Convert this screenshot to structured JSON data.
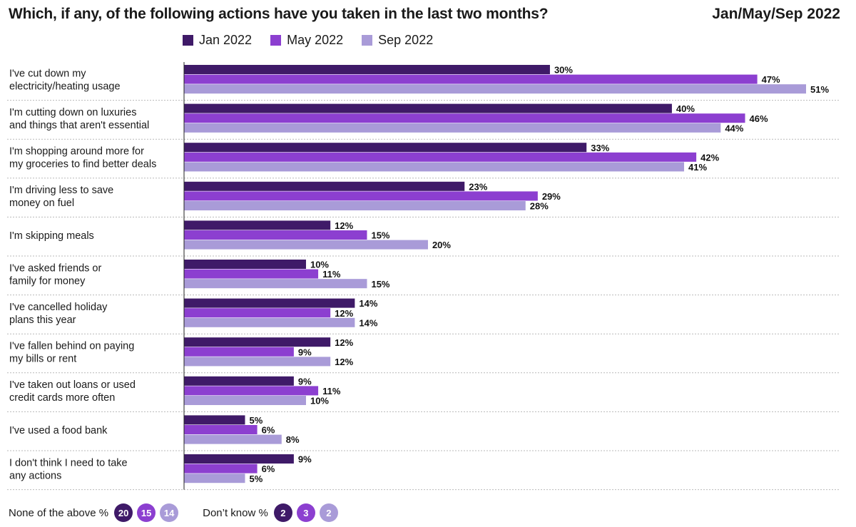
{
  "title": "Which, if any, of the following actions have you taken in the last two months?",
  "period_label": "Jan/May/Sep 2022",
  "colors": {
    "jan": "#3f1a68",
    "may": "#8c3fd0",
    "sep": "#a99bd8"
  },
  "chart_data": {
    "type": "bar",
    "orientation": "horizontal",
    "categories": [
      [
        "I've cut down my",
        "electricity/heating usage"
      ],
      [
        "I'm cutting down on luxuries",
        "and things that aren't essential"
      ],
      [
        "I'm shopping around more for",
        "my groceries to find better deals"
      ],
      [
        "I'm driving less to save",
        "money on fuel"
      ],
      [
        "I'm skipping meals"
      ],
      [
        "I've asked friends or",
        "family for money"
      ],
      [
        "I've cancelled holiday",
        "plans this year"
      ],
      [
        "I've fallen behind on paying",
        "my bills or rent"
      ],
      [
        "I've taken out loans or used",
        "credit cards more often"
      ],
      [
        "I've used a food bank"
      ],
      [
        "I don't think I need to take",
        "any actions"
      ]
    ],
    "series": [
      {
        "name": "Jan 2022",
        "values": [
          30,
          40,
          33,
          23,
          12,
          10,
          14,
          12,
          9,
          5,
          9
        ]
      },
      {
        "name": "May 2022",
        "values": [
          47,
          46,
          42,
          29,
          15,
          11,
          12,
          9,
          11,
          6,
          6
        ]
      },
      {
        "name": "Sep 2022",
        "values": [
          51,
          44,
          41,
          28,
          20,
          15,
          14,
          12,
          10,
          8,
          5
        ]
      }
    ],
    "value_suffix": "%",
    "xlim": [
      0,
      51
    ],
    "grid": false,
    "legend_position": "top"
  },
  "footer": {
    "none_label": "None of the above %",
    "none_values": [
      "20",
      "15",
      "14"
    ],
    "dontknow_label": "Don’t know %",
    "dontknow_values": [
      "2",
      "3",
      "2"
    ]
  }
}
